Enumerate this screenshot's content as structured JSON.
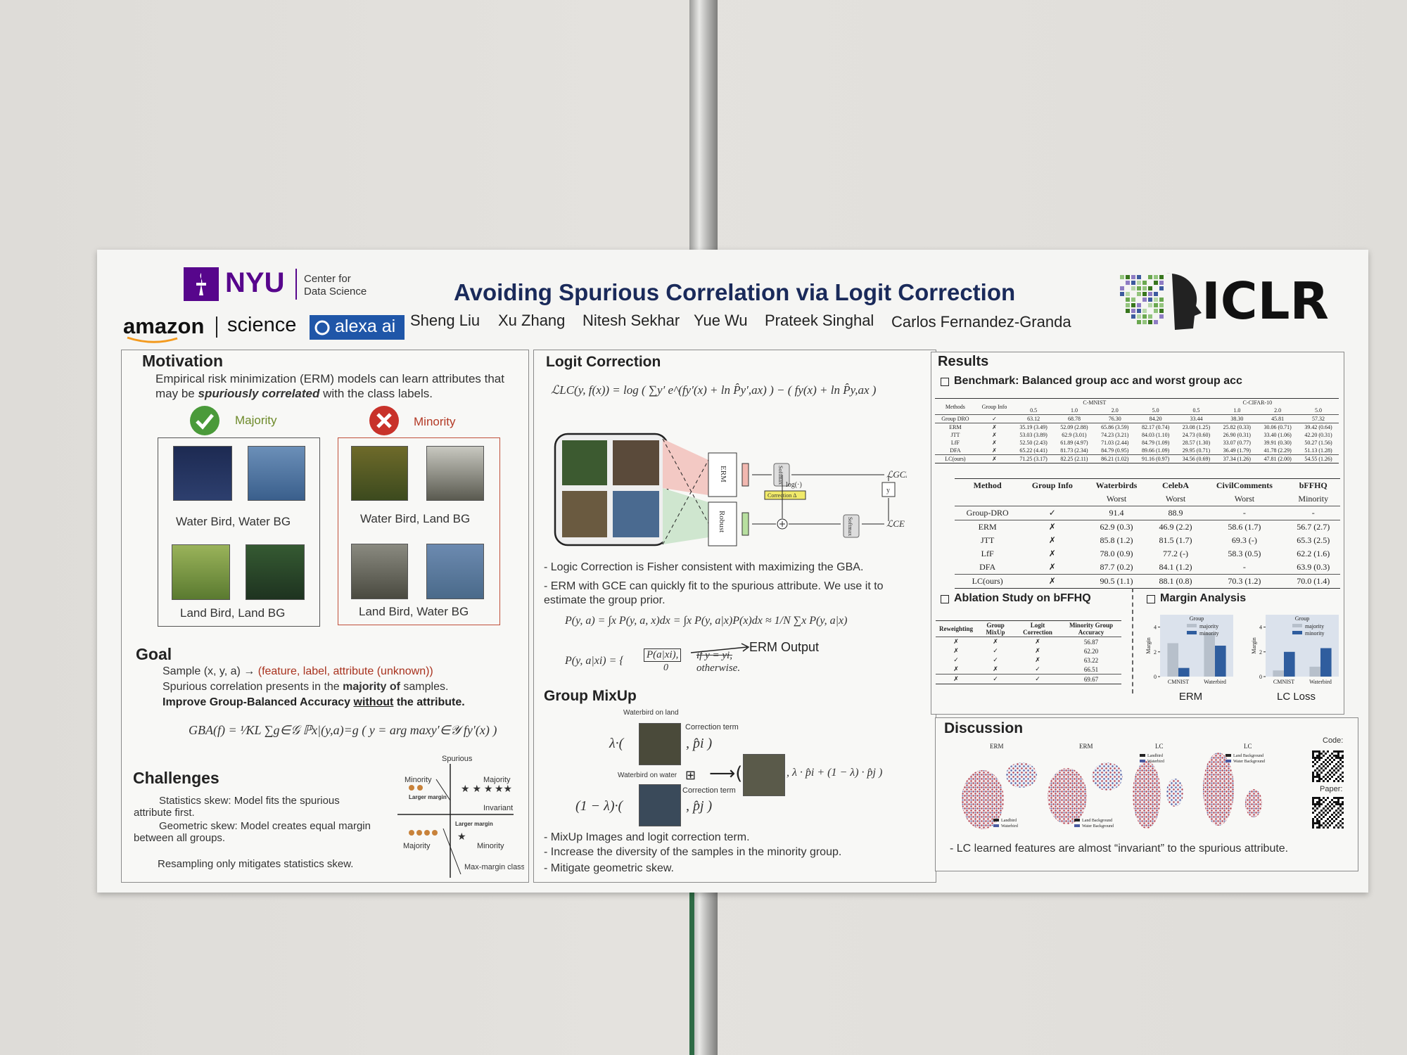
{
  "header": {
    "nyu": "NYU",
    "center": [
      "Center for",
      "Data Science"
    ],
    "amazon": "amazon",
    "science": "science",
    "alexa": "alexa ai",
    "title": "Avoiding Spurious Correlation via Logit Correction",
    "authors": [
      "Sheng Liu",
      "Xu Zhang",
      "Nitesh Sekhar",
      "Yue Wu",
      "Prateek Singhal",
      "Carlos Fernandez-Granda"
    ],
    "conference": "ICLR"
  },
  "motivation": {
    "heading": "Motivation",
    "text": [
      "Empirical risk minimization (ERM)  models can learn attributes that may be ",
      "spuriously correlated",
      " with the class labels."
    ],
    "majority": "Majority",
    "minority": "Minority",
    "majority_captions": [
      "Water Bird, Water BG",
      "Land Bird, Land BG"
    ],
    "minority_captions": [
      "Water Bird, Land BG",
      "Land Bird, Water BG"
    ]
  },
  "goal": {
    "heading": "Goal",
    "line1": [
      "Sample (x, y, a) → ",
      "(feature, label, attribute (unknown))"
    ],
    "line2": [
      "Spurious correlation presents in the ",
      "majority of",
      " samples."
    ],
    "line3": [
      "Improve Group-Balanced Accuracy ",
      "without",
      " the attribute."
    ],
    "formula": "GBA(f) = ¹⁄KL ∑g∈𝒢 ℙx|(y,a)=g ( y = arg maxy′∈𝒴 fy′(x) )"
  },
  "challenges": {
    "heading": "Challenges",
    "items": [
      "Statistics skew: Model fits the spurious attribute first.",
      "Geometric skew: Model creates equal margin between all groups.",
      "Resampling only mitigates statistics skew."
    ],
    "diagram": [
      "Spurious",
      "Minority",
      "Majority",
      "Larger margin",
      "Invariant",
      "Larger margin",
      "Majority",
      "Minority",
      "Max-margin classifier"
    ]
  },
  "logit_correction": {
    "heading": "Logit Correction",
    "formula": "ℒLC(y, f(x)) = log ( ∑y′ e^(fy′(x) + ln P̂y′,ax) ) − ( fy(x) + ln P̂y,ax )",
    "diagram": [
      "ERM",
      "Robust",
      "Softmax",
      "Softmax",
      "log(·)",
      "Correction Δ",
      "y",
      "ℒGCE",
      "ℒCE"
    ],
    "bullets": [
      "-  Logic Correction is Fisher consistent with maximizing the GBA.",
      "-  ERM with GCE can quickly fit to the spurious attribute. We use it to estimate the group prior."
    ],
    "formula2": "P(y, a) = ∫x P(y, a, x)dx = ∫x P(y, a|x)P(x)dx ≈ 1/N ∑x P(y, a|x)",
    "formula3": [
      "P(y, a|xi) = {",
      "P(a|xi),",
      "if y = yi,",
      "0",
      "otherwise."
    ],
    "erm_output": "ERM Output"
  },
  "group_mixup": {
    "heading": "Group MixUp",
    "labels": [
      "Waterbird on land",
      "Correction term",
      "Waterbird on water",
      "Correction term"
    ],
    "terms": [
      "λ·(",
      ", p̂i )",
      "(1 − λ)·(",
      ", p̂j )",
      "⊞",
      "⟶(",
      ", λ · p̂i + (1 − λ) · p̂j )"
    ],
    "bullets": [
      "-  MixUp Images and logit correction term.",
      "-  Increase the diversity of the samples in the minority group.",
      "-  Mitigate geometric skew."
    ]
  },
  "results": {
    "heading": "Results",
    "benchmark": "Benchmark: Balanced group acc and worst group acc",
    "table1": {
      "header": [
        "Methods",
        "Group Info",
        "C-MNIST",
        "C-CIFAR-10"
      ],
      "subheader": [
        "0.5",
        "1.0",
        "2.0",
        "5.0",
        "0.5",
        "1.0",
        "2.0",
        "5.0"
      ],
      "rows": [
        [
          "Group DRO",
          "✓",
          "63.12",
          "68.78",
          "76.30",
          "84.20",
          "33.44",
          "38.30",
          "45.81",
          "57.32"
        ],
        [
          "ERM",
          "✗",
          "35.19 (3.49)",
          "52.09 (2.88)",
          "65.86 (3.59)",
          "82.17 (0.74)",
          "23.08 (1.25)",
          "25.82 (0.33)",
          "30.06 (0.71)",
          "39.42 (0.64)"
        ],
        [
          "JTT",
          "✗",
          "53.03 (3.89)",
          "62.9 (3.01)",
          "74.23 (3.21)",
          "84.03 (1.10)",
          "24.73 (0.60)",
          "26.90 (0.31)",
          "33.40 (1.06)",
          "42.20 (0.31)"
        ],
        [
          "LfF",
          "✗",
          "52.50 (2.43)",
          "61.89 (4.97)",
          "71.03 (2.44)",
          "84.79 (1.09)",
          "28.57 (1.30)",
          "33.07 (0.77)",
          "39.91 (0.30)",
          "50.27 (1.56)"
        ],
        [
          "DFA",
          "✗",
          "65.22 (4.41)",
          "81.73 (2.34)",
          "84.79 (0.95)",
          "89.66 (1.09)",
          "29.95 (0.71)",
          "36.49 (1.79)",
          "41.78 (2.29)",
          "51.13 (1.28)"
        ],
        [
          "LC(ours)",
          "✗",
          "71.25 (3.17)",
          "82.25 (2.11)",
          "86.21 (1.02)",
          "91.16 (0.97)",
          "34.56 (0.69)",
          "37.34 (1.26)",
          "47.81 (2.00)",
          "54.55 (1.26)"
        ]
      ]
    },
    "table2": {
      "header": [
        "Method",
        "Group Info",
        "Waterbirds",
        "CelebA",
        "CivilComments",
        "bFFHQ"
      ],
      "subheader": [
        "Worst",
        "Worst",
        "Worst",
        "Minority"
      ],
      "rows": [
        [
          "Group-DRO",
          "✓",
          "91.4",
          "88.9",
          "-",
          "-"
        ],
        [
          "ERM",
          "✗",
          "62.9 (0.3)",
          "46.9 (2.2)",
          "58.6 (1.7)",
          "56.7 (2.7)"
        ],
        [
          "JTT",
          "✗",
          "85.8 (1.2)",
          "81.5 (1.7)",
          "69.3 (-)",
          "65.3 (2.5)"
        ],
        [
          "LfF",
          "✗",
          "78.0 (0.9)",
          "77.2 (-)",
          "58.3 (0.5)",
          "62.2 (1.6)"
        ],
        [
          "DFA",
          "✗",
          "87.7 (0.2)",
          "84.1 (1.2)",
          "-",
          "63.9 (0.3)"
        ],
        [
          "LC(ours)",
          "✗",
          "90.5 (1.1)",
          "88.1 (0.8)",
          "70.3 (1.2)",
          "70.0 (1.4)"
        ]
      ]
    },
    "ablation": {
      "heading": "Ablation Study on bFFHQ",
      "header": [
        "Reweighting",
        "Group MixUp",
        "Logit Correction",
        "Minority Group Accuracy"
      ],
      "rows": [
        [
          "✗",
          "✗",
          "✗",
          "56.87"
        ],
        [
          "✗",
          "✓",
          "✗",
          "62.20"
        ],
        [
          "✓",
          "✓",
          "✗",
          "63.22"
        ],
        [
          "✗",
          "✗",
          "✓",
          "66.51"
        ],
        [
          "✗",
          "✓",
          "✓",
          "69.67"
        ]
      ]
    },
    "margin": {
      "heading": "Margin Analysis",
      "charts": [
        {
          "label": "ERM",
          "ylabel": "Margin",
          "legend_title": "Group",
          "categories": [
            "CMNIST",
            "Waterbird"
          ],
          "ylim": [
            0,
            5
          ],
          "yticks": [
            0,
            2,
            4
          ],
          "series": [
            {
              "name": "majority",
              "color": "#b7c0cb",
              "values": [
                2.7,
                3.5
              ]
            },
            {
              "name": "minority",
              "color": "#2f5d9e",
              "values": [
                0.7,
                2.5
              ]
            }
          ]
        },
        {
          "label": "LC Loss",
          "ylabel": "Margin",
          "legend_title": "Group",
          "categories": [
            "CMNIST",
            "Waterbird"
          ],
          "ylim": [
            0,
            5
          ],
          "yticks": [
            0,
            2,
            4
          ],
          "series": [
            {
              "name": "majority",
              "color": "#b7c0cb",
              "values": [
                0.5,
                0.8
              ]
            },
            {
              "name": "minority",
              "color": "#2f5d9e",
              "values": [
                2.0,
                2.3
              ]
            }
          ]
        }
      ]
    }
  },
  "discussion": {
    "heading": "Discussion",
    "plot_titles": [
      "ERM",
      "ERM",
      "LC",
      "LC"
    ],
    "legends": [
      [
        "Landbird",
        "Waterbird"
      ],
      [
        "Land Background",
        "Water Background"
      ],
      [
        "Landbird",
        "Waterbird"
      ],
      [
        "Land Background",
        "Water Background"
      ]
    ],
    "code": "Code:",
    "paper": "Paper:",
    "bullet": "-  LC learned features are almost “invariant” to the spurious attribute."
  }
}
